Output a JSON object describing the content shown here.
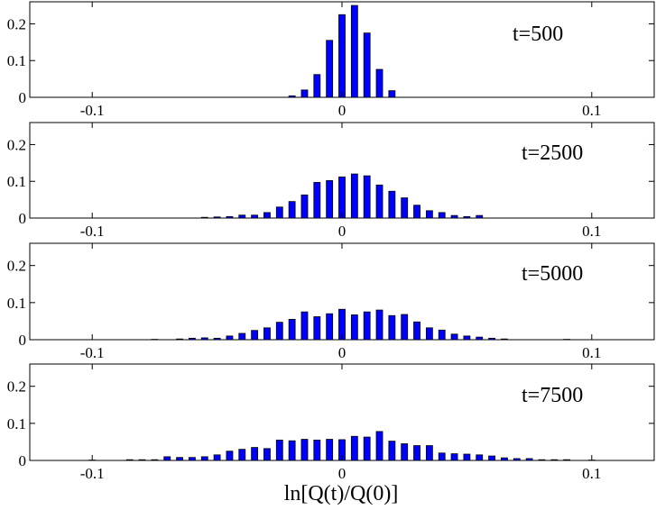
{
  "colors": {
    "bar_fill": "#0000ff",
    "bar_edge": "#000000",
    "axis": "#000000",
    "background": "#ffffff"
  },
  "chart_data": [
    {
      "type": "bar",
      "annotation": "t=500",
      "xlim": [
        -0.125,
        0.125
      ],
      "ylim": [
        0,
        0.26
      ],
      "x_ticks": [
        -0.1,
        0,
        0.1
      ],
      "x_tick_labels": [
        "-0.1",
        "0",
        "0.1"
      ],
      "y_ticks": [
        0,
        0.1,
        0.2
      ],
      "y_tick_labels": [
        "0",
        "0.1",
        "0.2"
      ],
      "x": [
        -0.02,
        -0.015,
        -0.01,
        -0.005,
        0,
        0.005,
        0.01,
        0.015,
        0.02
      ],
      "values": [
        0.004,
        0.02,
        0.062,
        0.155,
        0.225,
        0.25,
        0.175,
        0.076,
        0.018
      ]
    },
    {
      "type": "bar",
      "annotation": "t=2500",
      "xlim": [
        -0.125,
        0.125
      ],
      "ylim": [
        0,
        0.26
      ],
      "x_ticks": [
        -0.1,
        0,
        0.1
      ],
      "x_tick_labels": [
        "-0.1",
        "0",
        "0.1"
      ],
      "y_ticks": [
        0,
        0.1,
        0.2
      ],
      "y_tick_labels": [
        "0",
        "0.1",
        "0.2"
      ],
      "x": [
        -0.055,
        -0.05,
        -0.045,
        -0.04,
        -0.035,
        -0.03,
        -0.025,
        -0.02,
        -0.015,
        -0.01,
        -0.005,
        0,
        0.005,
        0.01,
        0.015,
        0.02,
        0.025,
        0.03,
        0.035,
        0.04,
        0.045,
        0.05,
        0.055
      ],
      "values": [
        0.002,
        0.003,
        0.004,
        0.008,
        0.008,
        0.015,
        0.03,
        0.045,
        0.063,
        0.097,
        0.102,
        0.112,
        0.12,
        0.115,
        0.09,
        0.073,
        0.055,
        0.035,
        0.02,
        0.015,
        0.007,
        0.004,
        0.007
      ]
    },
    {
      "type": "bar",
      "annotation": "t=5000",
      "xlim": [
        -0.125,
        0.125
      ],
      "ylim": [
        0,
        0.26
      ],
      "x_ticks": [
        -0.1,
        0,
        0.1
      ],
      "x_tick_labels": [
        "-0.1",
        "0",
        "0.1"
      ],
      "y_ticks": [
        0,
        0.1,
        0.2
      ],
      "y_tick_labels": [
        "0",
        "0.1",
        "0.2"
      ],
      "x": [
        -0.075,
        -0.065,
        -0.06,
        -0.055,
        -0.05,
        -0.045,
        -0.04,
        -0.035,
        -0.03,
        -0.025,
        -0.02,
        -0.015,
        -0.01,
        -0.005,
        0,
        0.005,
        0.01,
        0.015,
        0.02,
        0.025,
        0.03,
        0.035,
        0.04,
        0.045,
        0.05,
        0.055,
        0.06,
        0.065,
        0.09
      ],
      "values": [
        0.001,
        0.002,
        0.004,
        0.005,
        0.004,
        0.01,
        0.017,
        0.025,
        0.032,
        0.047,
        0.055,
        0.075,
        0.062,
        0.07,
        0.082,
        0.067,
        0.075,
        0.08,
        0.065,
        0.068,
        0.048,
        0.032,
        0.026,
        0.015,
        0.01,
        0.007,
        0.004,
        0.002,
        0.001
      ]
    },
    {
      "type": "bar",
      "annotation": "t=7500",
      "xlim": [
        -0.125,
        0.125
      ],
      "ylim": [
        0,
        0.26
      ],
      "x_ticks": [
        -0.1,
        0,
        0.1
      ],
      "x_tick_labels": [
        "-0.1",
        "0",
        "0.1"
      ],
      "y_ticks": [
        0,
        0.1,
        0.2
      ],
      "y_tick_labels": [
        "0",
        "0.1",
        "0.2"
      ],
      "xlabel": "ln[Q(t)/Q(0)]",
      "x": [
        -0.1,
        -0.085,
        -0.08,
        -0.075,
        -0.07,
        -0.065,
        -0.06,
        -0.055,
        -0.05,
        -0.045,
        -0.04,
        -0.035,
        -0.03,
        -0.025,
        -0.02,
        -0.015,
        -0.01,
        -0.005,
        0,
        0.005,
        0.01,
        0.015,
        0.02,
        0.025,
        0.03,
        0.035,
        0.04,
        0.045,
        0.05,
        0.055,
        0.06,
        0.065,
        0.07,
        0.075,
        0.08,
        0.085,
        0.09,
        0.1
      ],
      "values": [
        0.001,
        0.002,
        0.002,
        0.002,
        0.01,
        0.008,
        0.008,
        0.01,
        0.015,
        0.025,
        0.03,
        0.035,
        0.032,
        0.055,
        0.053,
        0.057,
        0.055,
        0.057,
        0.056,
        0.065,
        0.063,
        0.078,
        0.052,
        0.045,
        0.04,
        0.04,
        0.02,
        0.018,
        0.017,
        0.015,
        0.012,
        0.007,
        0.005,
        0.005,
        0.002,
        0.002,
        0.002,
        0.001
      ]
    }
  ]
}
